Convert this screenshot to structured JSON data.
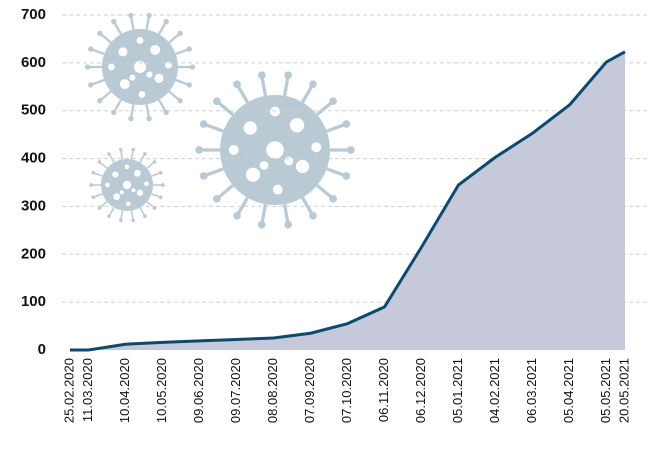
{
  "chart_data": {
    "type": "area",
    "categories": [
      "25.02.2020",
      "11.03.2020",
      "10.04.2020",
      "10.05.2020",
      "09.06.2020",
      "09.07.2020",
      "08.08.2020",
      "07.09.2020",
      "07.10.2020",
      "06.11.2020",
      "06.12.2020",
      "05.01.2021",
      "04.02.2021",
      "06.03.2021",
      "05.04.2021",
      "05.05.2021",
      "20.05.2021"
    ],
    "values": [
      0,
      0,
      12,
      16,
      19,
      22,
      25,
      35,
      55,
      90,
      215,
      345,
      403,
      453,
      512,
      602,
      623
    ],
    "color": "#0d4a6e",
    "fill": "#c5c9da",
    "ylim": [
      0,
      700
    ],
    "yticks": [
      0,
      100,
      200,
      300,
      400,
      500,
      600,
      700
    ],
    "grid": true
  }
}
